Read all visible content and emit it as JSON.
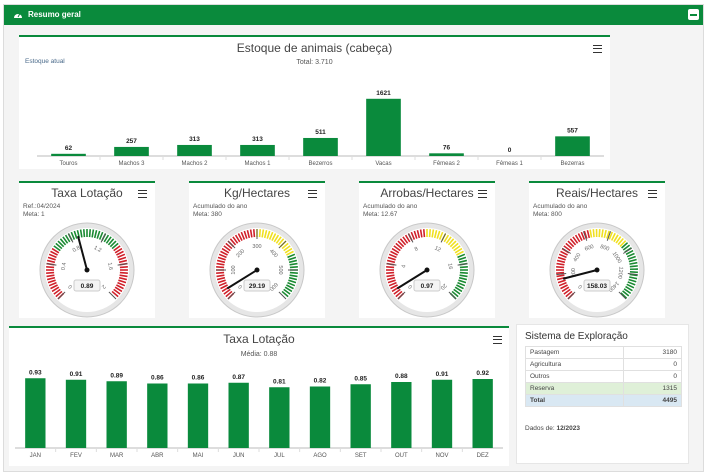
{
  "header": {
    "title": "Resumo geral",
    "icon": "dashboard-icon",
    "color": "#0a8a3c"
  },
  "stock": {
    "title": "Estoque de animais (cabeça)",
    "subtitle": "Total: 3.710",
    "label": "Estoque atual"
  },
  "gauges": [
    {
      "title": "Taxa Lotação",
      "line1": "Ref.:04/2024",
      "line2": "Meta: 1",
      "value": "0.89",
      "ticks": [
        "0",
        "0.4",
        "0.8",
        "1.2",
        "1.6",
        "2"
      ],
      "min": 0,
      "max": 2,
      "val": 0.89,
      "bands": [
        {
          "from": 0,
          "to": 0.6,
          "color": "#d0202a"
        },
        {
          "from": 0.6,
          "to": 1.4,
          "color": "#1a8a32"
        },
        {
          "from": 1.4,
          "to": 2,
          "color": "#d0202a"
        }
      ]
    },
    {
      "title": "Kg/Hectares",
      "line1": "Acumulado do ano",
      "line2": "Meta: 380",
      "value": "29.19",
      "ticks": [
        "0",
        "100",
        "200",
        "300",
        "400",
        "500",
        "600"
      ],
      "min": 0,
      "max": 600,
      "val": 29.19,
      "bands": [
        {
          "from": 0,
          "to": 300,
          "color": "#d0202a"
        },
        {
          "from": 300,
          "to": 450,
          "color": "#f0e020"
        },
        {
          "from": 450,
          "to": 600,
          "color": "#1a8a32"
        }
      ]
    },
    {
      "title": "Arrobas/Hectares",
      "line1": "Acumulado do ano",
      "line2": "Meta: 12.67",
      "value": "0.97",
      "ticks": [
        "0",
        "4",
        "8",
        "12",
        "16",
        "20"
      ],
      "min": 0,
      "max": 20,
      "val": 0.97,
      "bands": [
        {
          "from": 0,
          "to": 10,
          "color": "#d0202a"
        },
        {
          "from": 10,
          "to": 15,
          "color": "#f0e020"
        },
        {
          "from": 15,
          "to": 20,
          "color": "#1a8a32"
        }
      ]
    },
    {
      "title": "Reais/Hectares",
      "line1": "Acumulado do ano",
      "line2": "Meta: 800",
      "value": "158.03",
      "ticks": [
        "0",
        "200",
        "400",
        "600",
        "800",
        "1000",
        "1200",
        "1400"
      ],
      "min": 0,
      "max": 1400,
      "val": 158.03,
      "bands": [
        {
          "from": 0,
          "to": 650,
          "color": "#d0202a"
        },
        {
          "from": 650,
          "to": 950,
          "color": "#f0e020"
        },
        {
          "from": 950,
          "to": 1400,
          "color": "#1a8a32"
        }
      ]
    }
  ],
  "lotacao": {
    "title": "Taxa Lotação",
    "subtitle": "Média: 0.88"
  },
  "system": {
    "title": "Sistema de Exploração",
    "rows": [
      {
        "label": "Pastagem",
        "value": "3180"
      },
      {
        "label": "Agricultura",
        "value": "0"
      },
      {
        "label": "Outros",
        "value": "0"
      },
      {
        "label": "Reserva",
        "value": "1315"
      },
      {
        "label": "Total",
        "value": "4495"
      }
    ],
    "date_label": "Dados de:",
    "date_value": "12/2023"
  },
  "chart_data": [
    {
      "type": "bar",
      "title": "Estoque de animais (cabeça)",
      "subtitle": "Total: 3.710",
      "categories": [
        "Touros",
        "Machos 3",
        "Machos 2",
        "Machos 1",
        "Bezerros",
        "Vacas",
        "Fêmeas 2",
        "Fêmeas 1",
        "Bezerras"
      ],
      "values": [
        62,
        257,
        313,
        313,
        511,
        1621,
        76,
        0,
        557
      ],
      "ylim": [
        0,
        1700
      ],
      "color": "#0a8a3c"
    },
    {
      "type": "bar",
      "title": "Taxa Lotação",
      "subtitle": "Média: 0.88",
      "categories": [
        "JAN",
        "FEV",
        "MAR",
        "ABR",
        "MAI",
        "JUN",
        "JUL",
        "AGO",
        "SET",
        "OUT",
        "NOV",
        "DEZ"
      ],
      "values": [
        0.93,
        0.91,
        0.89,
        0.86,
        0.86,
        0.87,
        0.81,
        0.82,
        0.85,
        0.88,
        0.91,
        0.92
      ],
      "ylim": [
        0,
        1.0
      ],
      "color": "#0a8a3c"
    }
  ]
}
